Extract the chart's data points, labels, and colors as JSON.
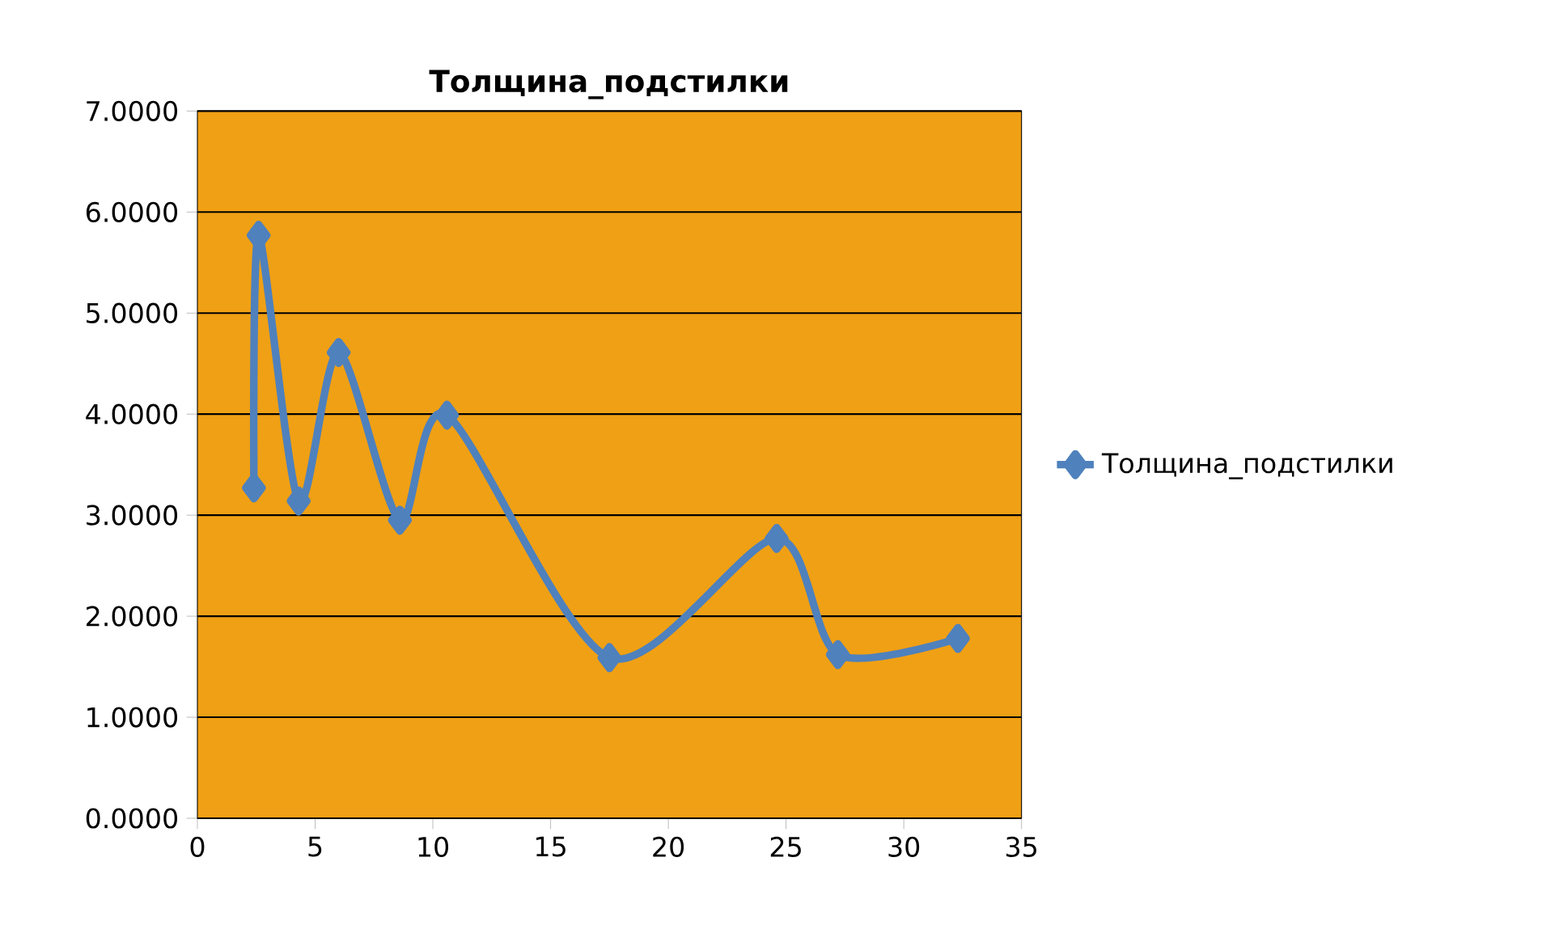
{
  "chart_data": {
    "type": "line",
    "title": "Толщина_подстилки",
    "x": [
      2.4,
      2.6,
      4.3,
      6.0,
      8.6,
      10.6,
      17.5,
      24.6,
      27.2,
      32.3
    ],
    "series": [
      {
        "name": "Толщина_подстилки",
        "color": "#4f81bd",
        "values": [
          3.27,
          5.77,
          3.14,
          4.61,
          2.95,
          3.99,
          1.59,
          2.77,
          1.62,
          1.78
        ]
      }
    ],
    "xlim": [
      0,
      35
    ],
    "xticks": [
      0,
      5,
      10,
      15,
      20,
      25,
      30,
      35
    ],
    "ylim": [
      0,
      7
    ],
    "yticks": [
      {
        "value": 0,
        "label": "0.0000"
      },
      {
        "value": 1,
        "label": "1.0000"
      },
      {
        "value": 2,
        "label": "2.0000"
      },
      {
        "value": 3,
        "label": "3.0000"
      },
      {
        "value": 4,
        "label": "4.0000"
      },
      {
        "value": 5,
        "label": "5.0000"
      },
      {
        "value": 6,
        "label": "6.0000"
      },
      {
        "value": 7,
        "label": "7.0000"
      }
    ],
    "grid": "y",
    "legend": "right",
    "marker": "diamond",
    "line_style": "solid"
  }
}
